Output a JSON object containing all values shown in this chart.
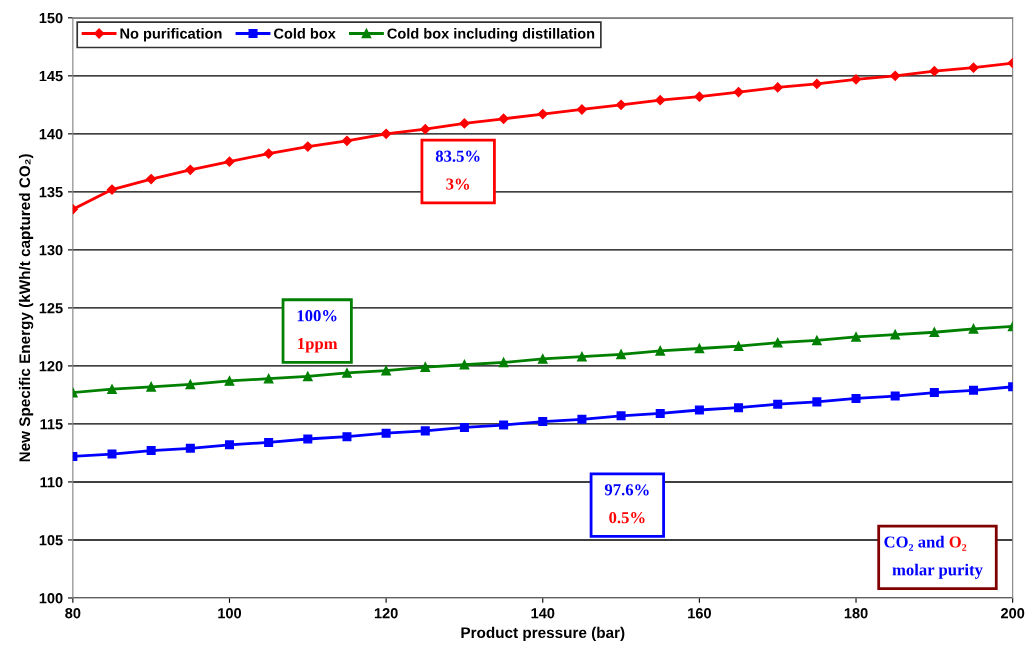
{
  "chart_data": {
    "type": "line",
    "xlabel": "Product pressure (bar)",
    "ylabel": "New Specific Energy (kWh/t captured CO₂)",
    "x": [
      80,
      85,
      90,
      95,
      100,
      105,
      110,
      115,
      120,
      125,
      130,
      135,
      140,
      145,
      150,
      155,
      160,
      165,
      170,
      175,
      180,
      185,
      190,
      195,
      200
    ],
    "series": [
      {
        "name": "No purification",
        "color": "#ff0000",
        "marker": "diamond",
        "values": [
          133.5,
          135.2,
          136.1,
          136.9,
          137.6,
          138.3,
          138.9,
          139.4,
          140.0,
          140.4,
          140.9,
          141.3,
          141.7,
          142.1,
          142.5,
          142.9,
          143.2,
          143.6,
          144.0,
          144.3,
          144.7,
          145.0,
          145.4,
          145.7,
          146.1
        ]
      },
      {
        "name": "Cold box",
        "color": "#0000ff",
        "marker": "square",
        "values": [
          112.2,
          112.4,
          112.7,
          112.9,
          113.2,
          113.4,
          113.7,
          113.9,
          114.2,
          114.4,
          114.7,
          114.9,
          115.2,
          115.4,
          115.7,
          115.9,
          116.2,
          116.4,
          116.7,
          116.9,
          117.2,
          117.4,
          117.7,
          117.9,
          118.2
        ]
      },
      {
        "name": "Cold box including distillation",
        "color": "#008000",
        "marker": "triangle",
        "values": [
          117.7,
          118.0,
          118.2,
          118.4,
          118.7,
          118.9,
          119.1,
          119.4,
          119.6,
          119.9,
          120.1,
          120.3,
          120.6,
          120.8,
          121.0,
          121.3,
          121.5,
          121.7,
          122.0,
          122.2,
          122.5,
          122.7,
          122.9,
          123.2,
          123.4
        ]
      }
    ],
    "xlim": [
      80,
      200
    ],
    "xticks": [
      80,
      100,
      120,
      140,
      160,
      180,
      200
    ],
    "ylim": [
      100,
      150
    ],
    "yticks": [
      100,
      105,
      110,
      115,
      120,
      125,
      130,
      135,
      140,
      145,
      150
    ],
    "grid": "y",
    "legend": "top left",
    "line_style": "solid",
    "annotations": [
      "83.5%\n3%",
      "100%\n1ppm",
      "97.6%\n0.5%",
      "CO₂ and O₂\nmolar purity"
    ]
  }
}
